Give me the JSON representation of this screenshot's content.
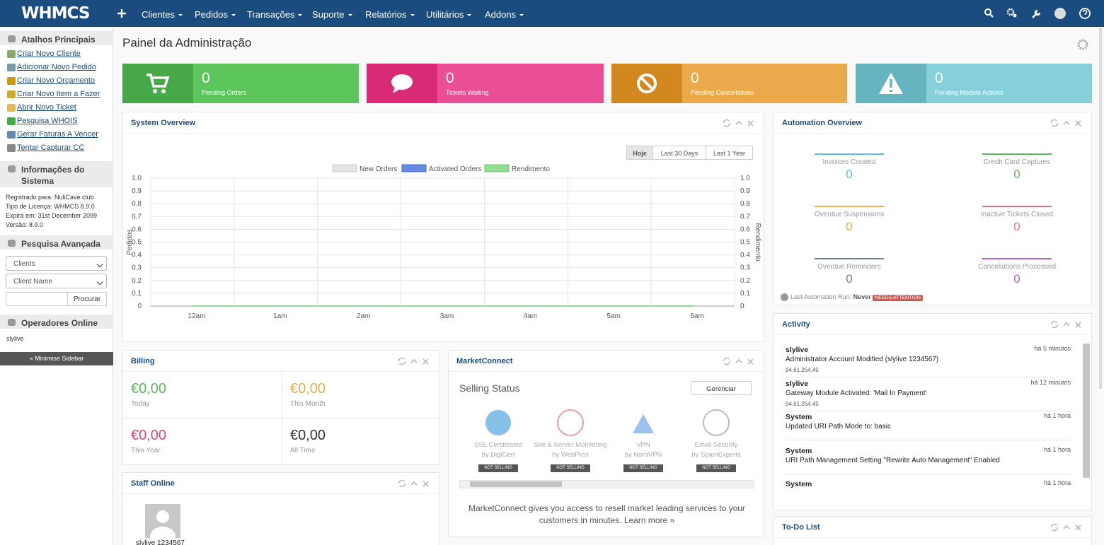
{
  "nav": {
    "logo": "WHMCS",
    "menu": [
      "Clientes",
      "Pedidos",
      "Transações",
      "Suporte",
      "Relatórios",
      "Utilitários",
      "Addons"
    ]
  },
  "sidebar": {
    "shortcuts": {
      "title": "Atalhos Principais",
      "links": [
        "Criar Novo Cliente",
        "Adicionar Novo Pedido",
        "Criar Novo Orçamento",
        "Criar Novo Item a Fazer",
        "Abrir Novo Ticket",
        "Pesquisa WHOIS",
        "Gerar Faturas A Vencer",
        "Tentar Capturar CC"
      ]
    },
    "system_info": {
      "title": "Informações do Sistema",
      "lines": [
        "Registrado para: NuliCave.club",
        "Tipo de Licença: WHMCS 8.9.0",
        "Expira em: 31st December 2099",
        "Versão: 8.9.0"
      ]
    },
    "search": {
      "title": "Pesquisa Avançada",
      "select_type": "Clients",
      "select_field": "Client Name",
      "button": "Procurar"
    },
    "operators": {
      "title": "Operadores Online",
      "users": [
        "slylive"
      ]
    },
    "minimise": "« Minimise Sidebar"
  },
  "page_title": "Painel da Administração",
  "stats": [
    {
      "value": 0,
      "label": "Pending Orders"
    },
    {
      "value": 0,
      "label": "Tickets Waiting"
    },
    {
      "value": 0,
      "label": "Pending Cancellations"
    },
    {
      "value": 0,
      "label": "Pending Module Actions"
    }
  ],
  "system_overview": {
    "title": "System Overview",
    "tabs": [
      "Hoje",
      "Last 30 Days",
      "Last 1 Year"
    ],
    "chart_data": {
      "type": "line",
      "y_label": "Pedidos",
      "y2_label": "Rendimento",
      "categories": [
        "12am",
        "1am",
        "2am",
        "3am",
        "4am",
        "5am",
        "6am"
      ],
      "series": [
        {
          "name": "New Orders",
          "color": "#e4e4e4",
          "values": [
            0,
            0,
            0,
            0,
            0,
            0,
            0
          ]
        },
        {
          "name": "Activated Orders",
          "color": "#6a8ce0",
          "values": [
            0,
            0,
            0,
            0,
            0,
            0,
            0
          ]
        },
        {
          "name": "Rendimento",
          "color": "#93dc93",
          "axis": "y2",
          "values": [
            0,
            0,
            0,
            0,
            0,
            0,
            0
          ]
        }
      ],
      "ylim": [
        0,
        1
      ],
      "yticks": [
        0,
        0.1,
        0.2,
        0.3,
        0.4,
        0.5,
        0.6,
        0.7,
        0.8,
        0.9,
        {
          "value": 1,
          "label": "1.0"
        }
      ],
      "y2lim": [
        0,
        1
      ],
      "y2ticks": [
        0,
        0.1,
        0.2,
        0.3,
        0.4,
        0.5,
        0.6,
        0.7,
        0.8,
        0.9,
        {
          "value": 1,
          "label": "1.0"
        }
      ],
      "grid": true
    }
  },
  "automation": {
    "title": "Automation Overview",
    "items": [
      {
        "label": "Invoices Created",
        "value": 0,
        "color": "#5bc0de"
      },
      {
        "label": "Credit Card Captures",
        "value": 0,
        "color": "#5cb85c"
      },
      {
        "label": "Overdue Suspensions",
        "value": 0,
        "color": "#f0ad4e"
      },
      {
        "label": "Inactive Tickets Closed",
        "value": 0,
        "color": "#e4708e"
      },
      {
        "label": "Overdue Reminders",
        "value": 0,
        "color": "#6f7f90"
      },
      {
        "label": "Cancellations Processed",
        "value": 0,
        "color": "#b463c6"
      }
    ],
    "last_run_label": "Last Automation Run:",
    "last_run_value": "Never",
    "badge": "NEEDS ATTENTION"
  },
  "billing": {
    "title": "Billing",
    "items": [
      {
        "amount": "€0,00",
        "label": "Today"
      },
      {
        "amount": "€0,00",
        "label": "This Month"
      },
      {
        "amount": "€0,00",
        "label": "This Year"
      },
      {
        "amount": "€0,00",
        "label": "All Time"
      }
    ]
  },
  "marketconnect": {
    "title": "MarketConnect",
    "heading": "Selling Status",
    "button": "Gerenciar",
    "services": [
      {
        "name": "SSL Certificates",
        "by": "by DigiCert",
        "status": "NOT SELLING"
      },
      {
        "name": "Site & Server Monitoring",
        "by": "by WebPros",
        "status": "NOT SELLING"
      },
      {
        "name": "VPN",
        "by": "by NordVPN",
        "status": "NOT SELLING"
      },
      {
        "name": "Email Security",
        "by": "by SpamExperts",
        "status": "NOT SELLING"
      }
    ],
    "footer": "MarketConnect gives you access to resell market leading services to your customers in minutes. Learn more »"
  },
  "activity": {
    "title": "Activity",
    "entries": [
      {
        "user": "slylive",
        "time": "há 5 minutos",
        "text": "Administrator Account Modified (slylive 1234567)",
        "ip": "94.61.254.45"
      },
      {
        "user": "slylive",
        "time": "há 12 minutos",
        "text": "Gateway Module Activated: 'Mail In Payment'",
        "ip": "94.61.254.45"
      },
      {
        "user": "System",
        "time": "há 1 hora",
        "text": "Updated URI Path Mode to: basic"
      },
      {
        "user": "System",
        "time": "há 1 hora",
        "text": "URI Path Management Setting \"Rewrite Auto Management\" Enabled"
      },
      {
        "user": "System",
        "time": "há 1 hora"
      }
    ]
  },
  "staff_online": {
    "title": "Staff Online",
    "users": [
      "slylive 1234567"
    ]
  },
  "todo": {
    "title": "To-Do List"
  }
}
